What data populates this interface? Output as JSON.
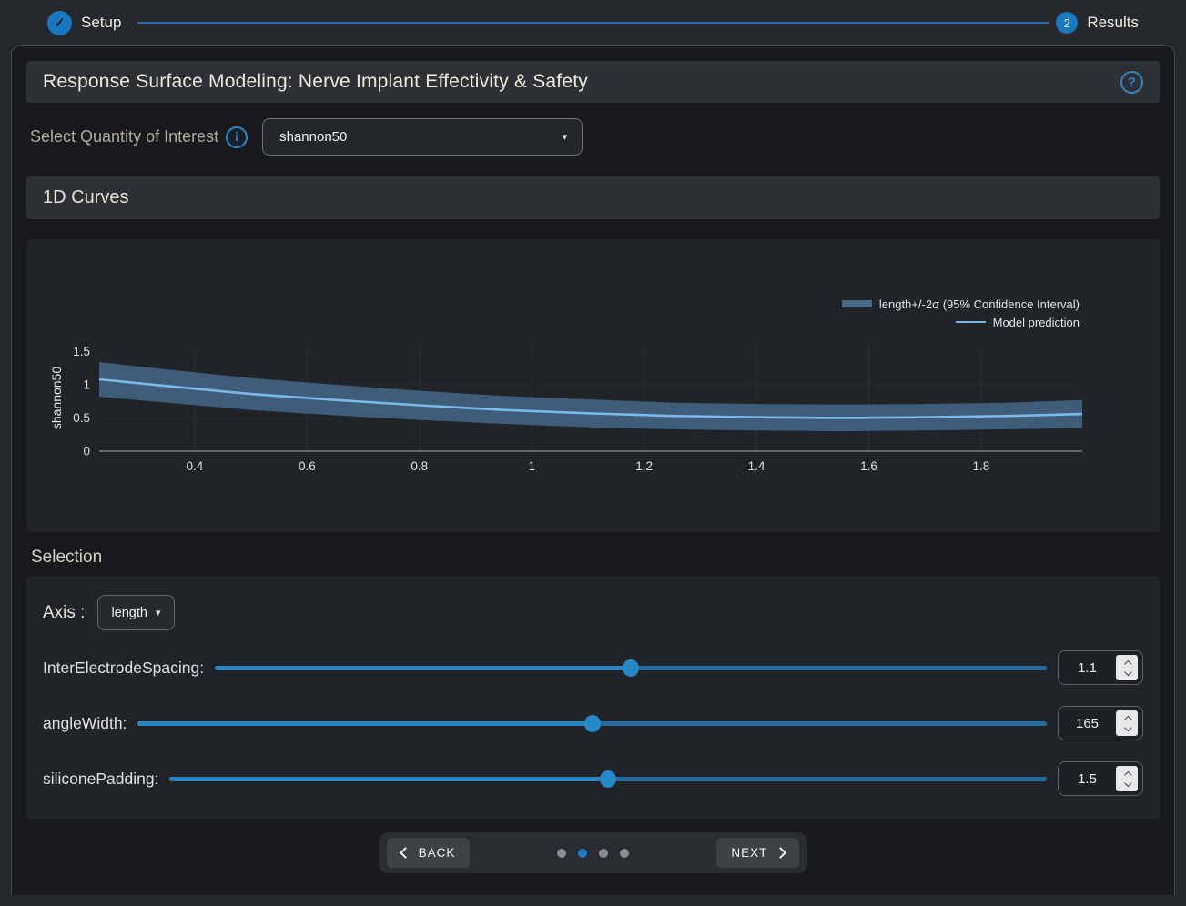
{
  "stepper": {
    "setup_label": "Setup",
    "results_step_number": "2",
    "results_label": "Results",
    "check_glyph": "✓"
  },
  "header": {
    "title": "Response Surface Modeling: Nerve Implant Effectivity & Safety",
    "help_glyph": "?"
  },
  "qoi": {
    "label": "Select Quantity of Interest",
    "info_glyph": "i",
    "selected_value": "shannon50",
    "caret_glyph": "▾"
  },
  "curves_section": {
    "title": "1D Curves"
  },
  "chart_data": {
    "type": "line",
    "ylabel": "shannon50",
    "xlim": [
      0.23,
      1.98
    ],
    "ylim": [
      0,
      1.6
    ],
    "x_ticks": [
      0.4,
      0.6,
      0.8,
      1,
      1.2,
      1.4,
      1.6,
      1.8
    ],
    "y_ticks": [
      0,
      0.5,
      1,
      1.5
    ],
    "band_color": "#3f5d79",
    "line_color": "#7cb9e8",
    "legend": [
      {
        "label": "length+/-2σ (95% Confidence Interval)",
        "type": "band"
      },
      {
        "label": "Model prediction",
        "type": "line"
      }
    ],
    "x": [
      0.23,
      0.35,
      0.5,
      0.65,
      0.8,
      0.95,
      1.1,
      1.25,
      1.4,
      1.55,
      1.7,
      1.85,
      1.98
    ],
    "mean": [
      1.08,
      0.98,
      0.86,
      0.77,
      0.69,
      0.62,
      0.57,
      0.53,
      0.51,
      0.5,
      0.51,
      0.53,
      0.56
    ],
    "upper": [
      1.34,
      1.23,
      1.1,
      1.0,
      0.91,
      0.83,
      0.78,
      0.73,
      0.71,
      0.7,
      0.71,
      0.73,
      0.77
    ],
    "lower": [
      0.82,
      0.73,
      0.62,
      0.54,
      0.47,
      0.41,
      0.36,
      0.33,
      0.31,
      0.3,
      0.31,
      0.33,
      0.35
    ]
  },
  "selection": {
    "title": "Selection",
    "axis_label": "Axis :",
    "axis_value": "length",
    "caret_glyph": "▾",
    "sliders": [
      {
        "label": "InterElectrodeSpacing:",
        "value": "1.1",
        "fraction": 0.5
      },
      {
        "label": "angleWidth:",
        "value": "165",
        "fraction": 0.5
      },
      {
        "label": "siliconePadding:",
        "value": "1.5",
        "fraction": 0.5
      }
    ]
  },
  "footer": {
    "back_label": "BACK",
    "next_label": "NEXT",
    "dot_count": 4,
    "active_dot": 1
  },
  "colors": {
    "accent_blue": "#1f78c8",
    "panel_bg": "#202428",
    "card_bg": "#17191d",
    "bar_bg": "#2d3136"
  }
}
